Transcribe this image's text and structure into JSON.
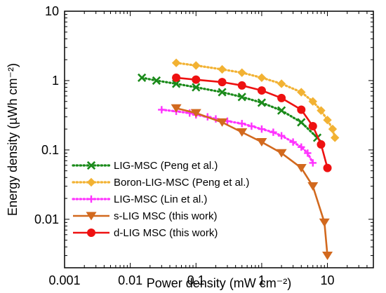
{
  "chart_data": {
    "type": "scatter",
    "title": "",
    "xlabel": "Power density (mW cm⁻²)",
    "ylabel": "Energy density (µWh cm⁻²)",
    "x_scale": "log",
    "y_scale": "log",
    "xlim": [
      0.001,
      50
    ],
    "ylim": [
      0.002,
      10
    ],
    "x_ticks": [
      0.001,
      0.01,
      0.1,
      1,
      10
    ],
    "x_tick_labels": [
      "0.001",
      "0.01",
      "0.1",
      "1",
      "10"
    ],
    "y_ticks": [
      0.01,
      0.1,
      1,
      10
    ],
    "y_tick_labels": [
      "0.01",
      "0.1",
      "1",
      "10"
    ],
    "grid": false,
    "legend_position": "bottom-left",
    "series": [
      {
        "name": "LIG-MSC (Peng et al.)",
        "color": "#1a8a1a",
        "marker": "x",
        "line_style": "dotted",
        "x": [
          0.015,
          0.025,
          0.05,
          0.1,
          0.25,
          0.5,
          1,
          2,
          4,
          7
        ],
        "y": [
          1.1,
          1.0,
          0.9,
          0.8,
          0.68,
          0.58,
          0.48,
          0.37,
          0.25,
          0.15
        ]
      },
      {
        "name": "Boron-LIG-MSC (Peng et al.)",
        "color": "#f2b233",
        "marker": "diamond",
        "line_style": "dotted",
        "x": [
          0.05,
          0.1,
          0.25,
          0.5,
          1,
          2,
          4,
          6,
          8,
          10,
          12,
          13
        ],
        "y": [
          1.8,
          1.65,
          1.45,
          1.3,
          1.1,
          0.9,
          0.68,
          0.5,
          0.37,
          0.27,
          0.2,
          0.15
        ]
      },
      {
        "name": "LIG-MSC (Lin et al.)",
        "color": "#ff33ff",
        "marker": "plus",
        "line_style": "dotted",
        "x": [
          0.03,
          0.05,
          0.08,
          0.1,
          0.15,
          0.2,
          0.3,
          0.5,
          0.7,
          1,
          1.5,
          2,
          3,
          4,
          5,
          6
        ],
        "y": [
          0.38,
          0.36,
          0.34,
          0.32,
          0.3,
          0.28,
          0.26,
          0.24,
          0.22,
          0.2,
          0.18,
          0.16,
          0.13,
          0.11,
          0.09,
          0.065
        ]
      },
      {
        "name": "s-LIG MSC (this work)",
        "color": "#d2691e",
        "marker": "triangle-down",
        "line_style": "solid",
        "x": [
          0.05,
          0.1,
          0.25,
          0.5,
          1,
          2,
          4,
          6,
          9,
          10
        ],
        "y": [
          0.4,
          0.34,
          0.25,
          0.18,
          0.13,
          0.09,
          0.055,
          0.03,
          0.009,
          0.003
        ]
      },
      {
        "name": "d-LIG MSC (this work)",
        "color": "#ee1111",
        "marker": "circle",
        "line_style": "solid",
        "x": [
          0.05,
          0.1,
          0.25,
          0.5,
          1,
          2,
          4,
          6,
          8,
          10
        ],
        "y": [
          1.1,
          1.03,
          0.95,
          0.85,
          0.72,
          0.56,
          0.38,
          0.22,
          0.12,
          0.055
        ]
      }
    ]
  }
}
